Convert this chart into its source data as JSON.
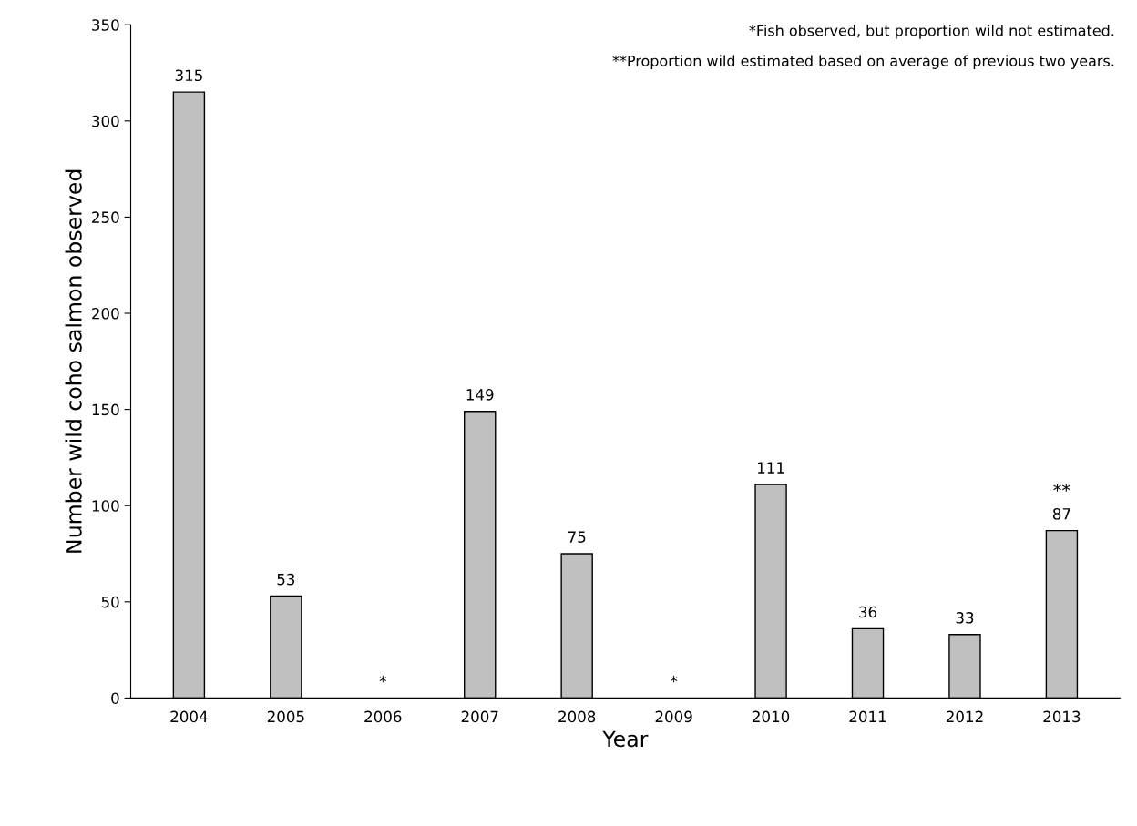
{
  "chart_data": {
    "type": "bar",
    "xlabel": "Year",
    "ylabel": "Number wild coho salmon observed",
    "categories": [
      "2004",
      "2005",
      "2006",
      "2007",
      "2008",
      "2009",
      "2010",
      "2011",
      "2012",
      "2013"
    ],
    "values": [
      315,
      53,
      null,
      149,
      75,
      null,
      111,
      36,
      33,
      87
    ],
    "value_labels": [
      "315",
      "53",
      "*",
      "149",
      "75",
      "*",
      "111",
      "36",
      "33",
      "87"
    ],
    "color": "#c0c0c0",
    "ylim": [
      0,
      350
    ],
    "yticks": [
      0,
      50,
      100,
      150,
      200,
      250,
      300,
      350
    ],
    "grid": false,
    "legend": false,
    "annotations": [
      "*Fish observed, but proportion wild not estimated.",
      "**Proportion wild estimated based on average of previous two years.",
      {
        "text": "**",
        "x": "2013",
        "y": 87
      }
    ]
  }
}
